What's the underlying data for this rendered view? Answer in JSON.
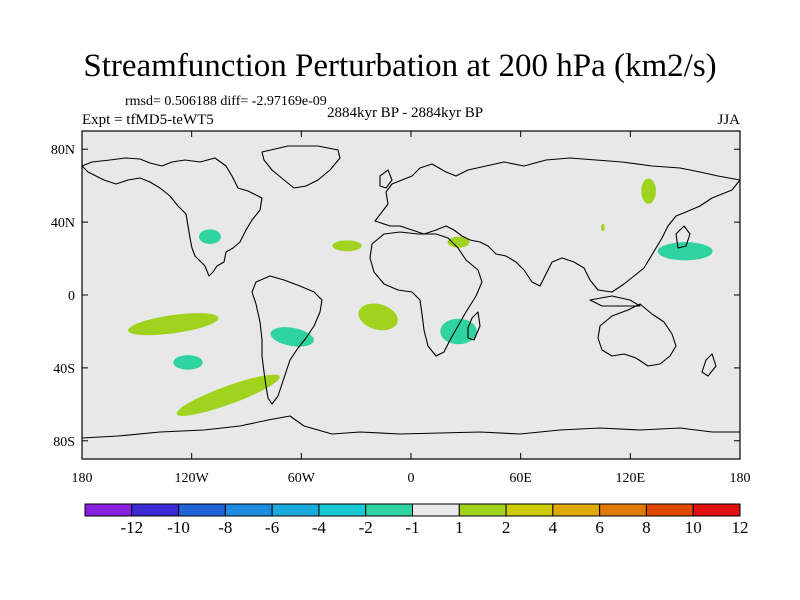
{
  "header": {
    "title": "Streamfunction Perturbation at 200 hPa (km2/s)",
    "stats": "rmsd= 0.506188 diff= -2.97169e-09",
    "experiment": "Expt = tfMD5-teWT5",
    "period": "2884kyr BP - 2884kyr BP",
    "season": "JJA"
  },
  "axes": {
    "lon_ticks": [
      {
        "value": -180,
        "label": "180"
      },
      {
        "value": -120,
        "label": "120W"
      },
      {
        "value": -60,
        "label": "60W"
      },
      {
        "value": 0,
        "label": "0"
      },
      {
        "value": 60,
        "label": "60E"
      },
      {
        "value": 120,
        "label": "120E"
      },
      {
        "value": 180,
        "label": "180"
      }
    ],
    "lat_ticks": [
      {
        "value": 80,
        "label": "80N"
      },
      {
        "value": 40,
        "label": "40N"
      },
      {
        "value": 0,
        "label": "0"
      },
      {
        "value": -40,
        "label": "40S"
      },
      {
        "value": -80,
        "label": "80S"
      }
    ],
    "lon_range": [
      -180,
      180
    ],
    "lat_range": [
      -90,
      90
    ]
  },
  "colors": {
    "background_fill": "#e8e8e8",
    "coastline": "#000000",
    "neg_light": "#2ed3a0",
    "pos_light": "#a0d21e"
  },
  "colorbar": {
    "labels": [
      "-12",
      "-10",
      "-8",
      "-6",
      "-4",
      "-2",
      "-1",
      "1",
      "2",
      "4",
      "6",
      "8",
      "10",
      "12"
    ],
    "colors": [
      "#8b1fe0",
      "#3c2bd4",
      "#1e64d7",
      "#1c8ce0",
      "#1aa9dc",
      "#18c8d2",
      "#2ed3a0",
      "#e8e8e8",
      "#a0d21e",
      "#cccc00",
      "#e0aa00",
      "#e07a00",
      "#e04800",
      "#e01010"
    ]
  },
  "chart_data": {
    "type": "map-contour",
    "title": "Streamfunction Perturbation at 200 hPa (km2/s)",
    "units": "km2/s",
    "levels": [
      -12,
      -10,
      -8,
      -6,
      -4,
      -2,
      -1,
      1,
      2,
      4,
      6,
      8,
      10,
      12
    ],
    "anomaly_regions": [
      {
        "name": "southeast-pacific-positive",
        "sign": "positive",
        "lon": -100,
        "lat": -55,
        "rx": 30,
        "ry": 5,
        "rot": -20,
        "color": "#a0d21e"
      },
      {
        "name": "south-central-pacific-positive",
        "sign": "positive",
        "lon": -130,
        "lat": -16,
        "rx": 25,
        "ry": 5,
        "rot": -8,
        "color": "#a0d21e"
      },
      {
        "name": "south-atlantic-positive",
        "sign": "positive",
        "lon": -18,
        "lat": -12,
        "rx": 11,
        "ry": 7,
        "rot": 15,
        "color": "#a0d21e"
      },
      {
        "name": "central-asia-positive",
        "sign": "positive",
        "lon": 130,
        "lat": 57,
        "rx": 4,
        "ry": 7,
        "rot": 0,
        "color": "#a0d21e"
      },
      {
        "name": "mid-atlantic-positive",
        "sign": "positive",
        "lon": -35,
        "lat": 27,
        "rx": 8,
        "ry": 3,
        "rot": 0,
        "color": "#a0d21e"
      },
      {
        "name": "north-africa-positive",
        "sign": "positive",
        "lon": 26,
        "lat": 29,
        "rx": 6,
        "ry": 3,
        "rot": 0,
        "color": "#a0d21e"
      },
      {
        "name": "east-asia-small-positive",
        "sign": "positive",
        "lon": 105,
        "lat": 37,
        "rx": 1,
        "ry": 2,
        "rot": 0,
        "color": "#a0d21e"
      },
      {
        "name": "north-pacific-negative",
        "sign": "negative",
        "lon": 150,
        "lat": 24,
        "rx": 15,
        "ry": 5,
        "rot": 0,
        "color": "#2ed3a0"
      },
      {
        "name": "mexico-negative",
        "sign": "negative",
        "lon": -110,
        "lat": 32,
        "rx": 6,
        "ry": 4,
        "rot": 0,
        "color": "#2ed3a0"
      },
      {
        "name": "south-america-negative",
        "sign": "negative",
        "lon": -65,
        "lat": -23,
        "rx": 12,
        "ry": 5,
        "rot": 10,
        "color": "#2ed3a0"
      },
      {
        "name": "southern-africa-negative",
        "sign": "negative",
        "lon": 26,
        "lat": -20,
        "rx": 10,
        "ry": 7,
        "rot": 0,
        "color": "#2ed3a0"
      },
      {
        "name": "south-pacific-negative",
        "sign": "negative",
        "lon": -122,
        "lat": -37,
        "rx": 8,
        "ry": 4,
        "rot": 0,
        "color": "#2ed3a0"
      }
    ]
  }
}
